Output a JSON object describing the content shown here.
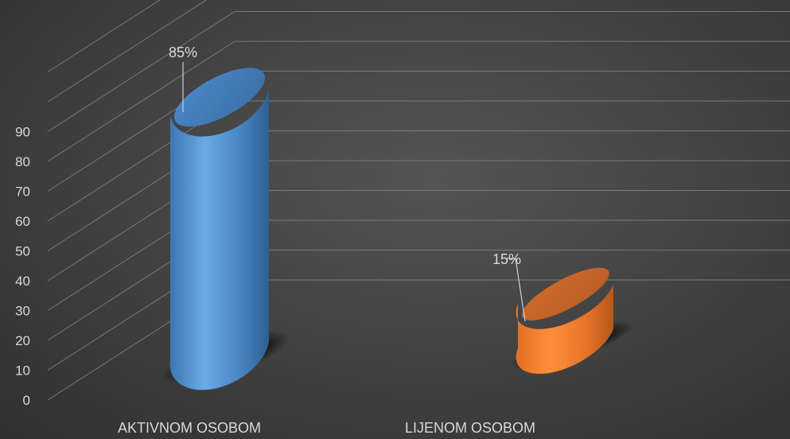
{
  "chart_data": {
    "type": "bar",
    "variant": "3d-cylinder",
    "categories": [
      "AKTIVNOM OSOBOM",
      "LIJENOM OSOBOM"
    ],
    "values": [
      85,
      15
    ],
    "data_labels": [
      "85%",
      "15%"
    ],
    "ylim": [
      0,
      90
    ],
    "yticks": [
      "0",
      "10",
      "20",
      "30",
      "40",
      "50",
      "60",
      "70",
      "80",
      "90"
    ],
    "grid": true,
    "legend": "none",
    "colors": [
      "#5b9bd5",
      "#ed7d31"
    ]
  }
}
